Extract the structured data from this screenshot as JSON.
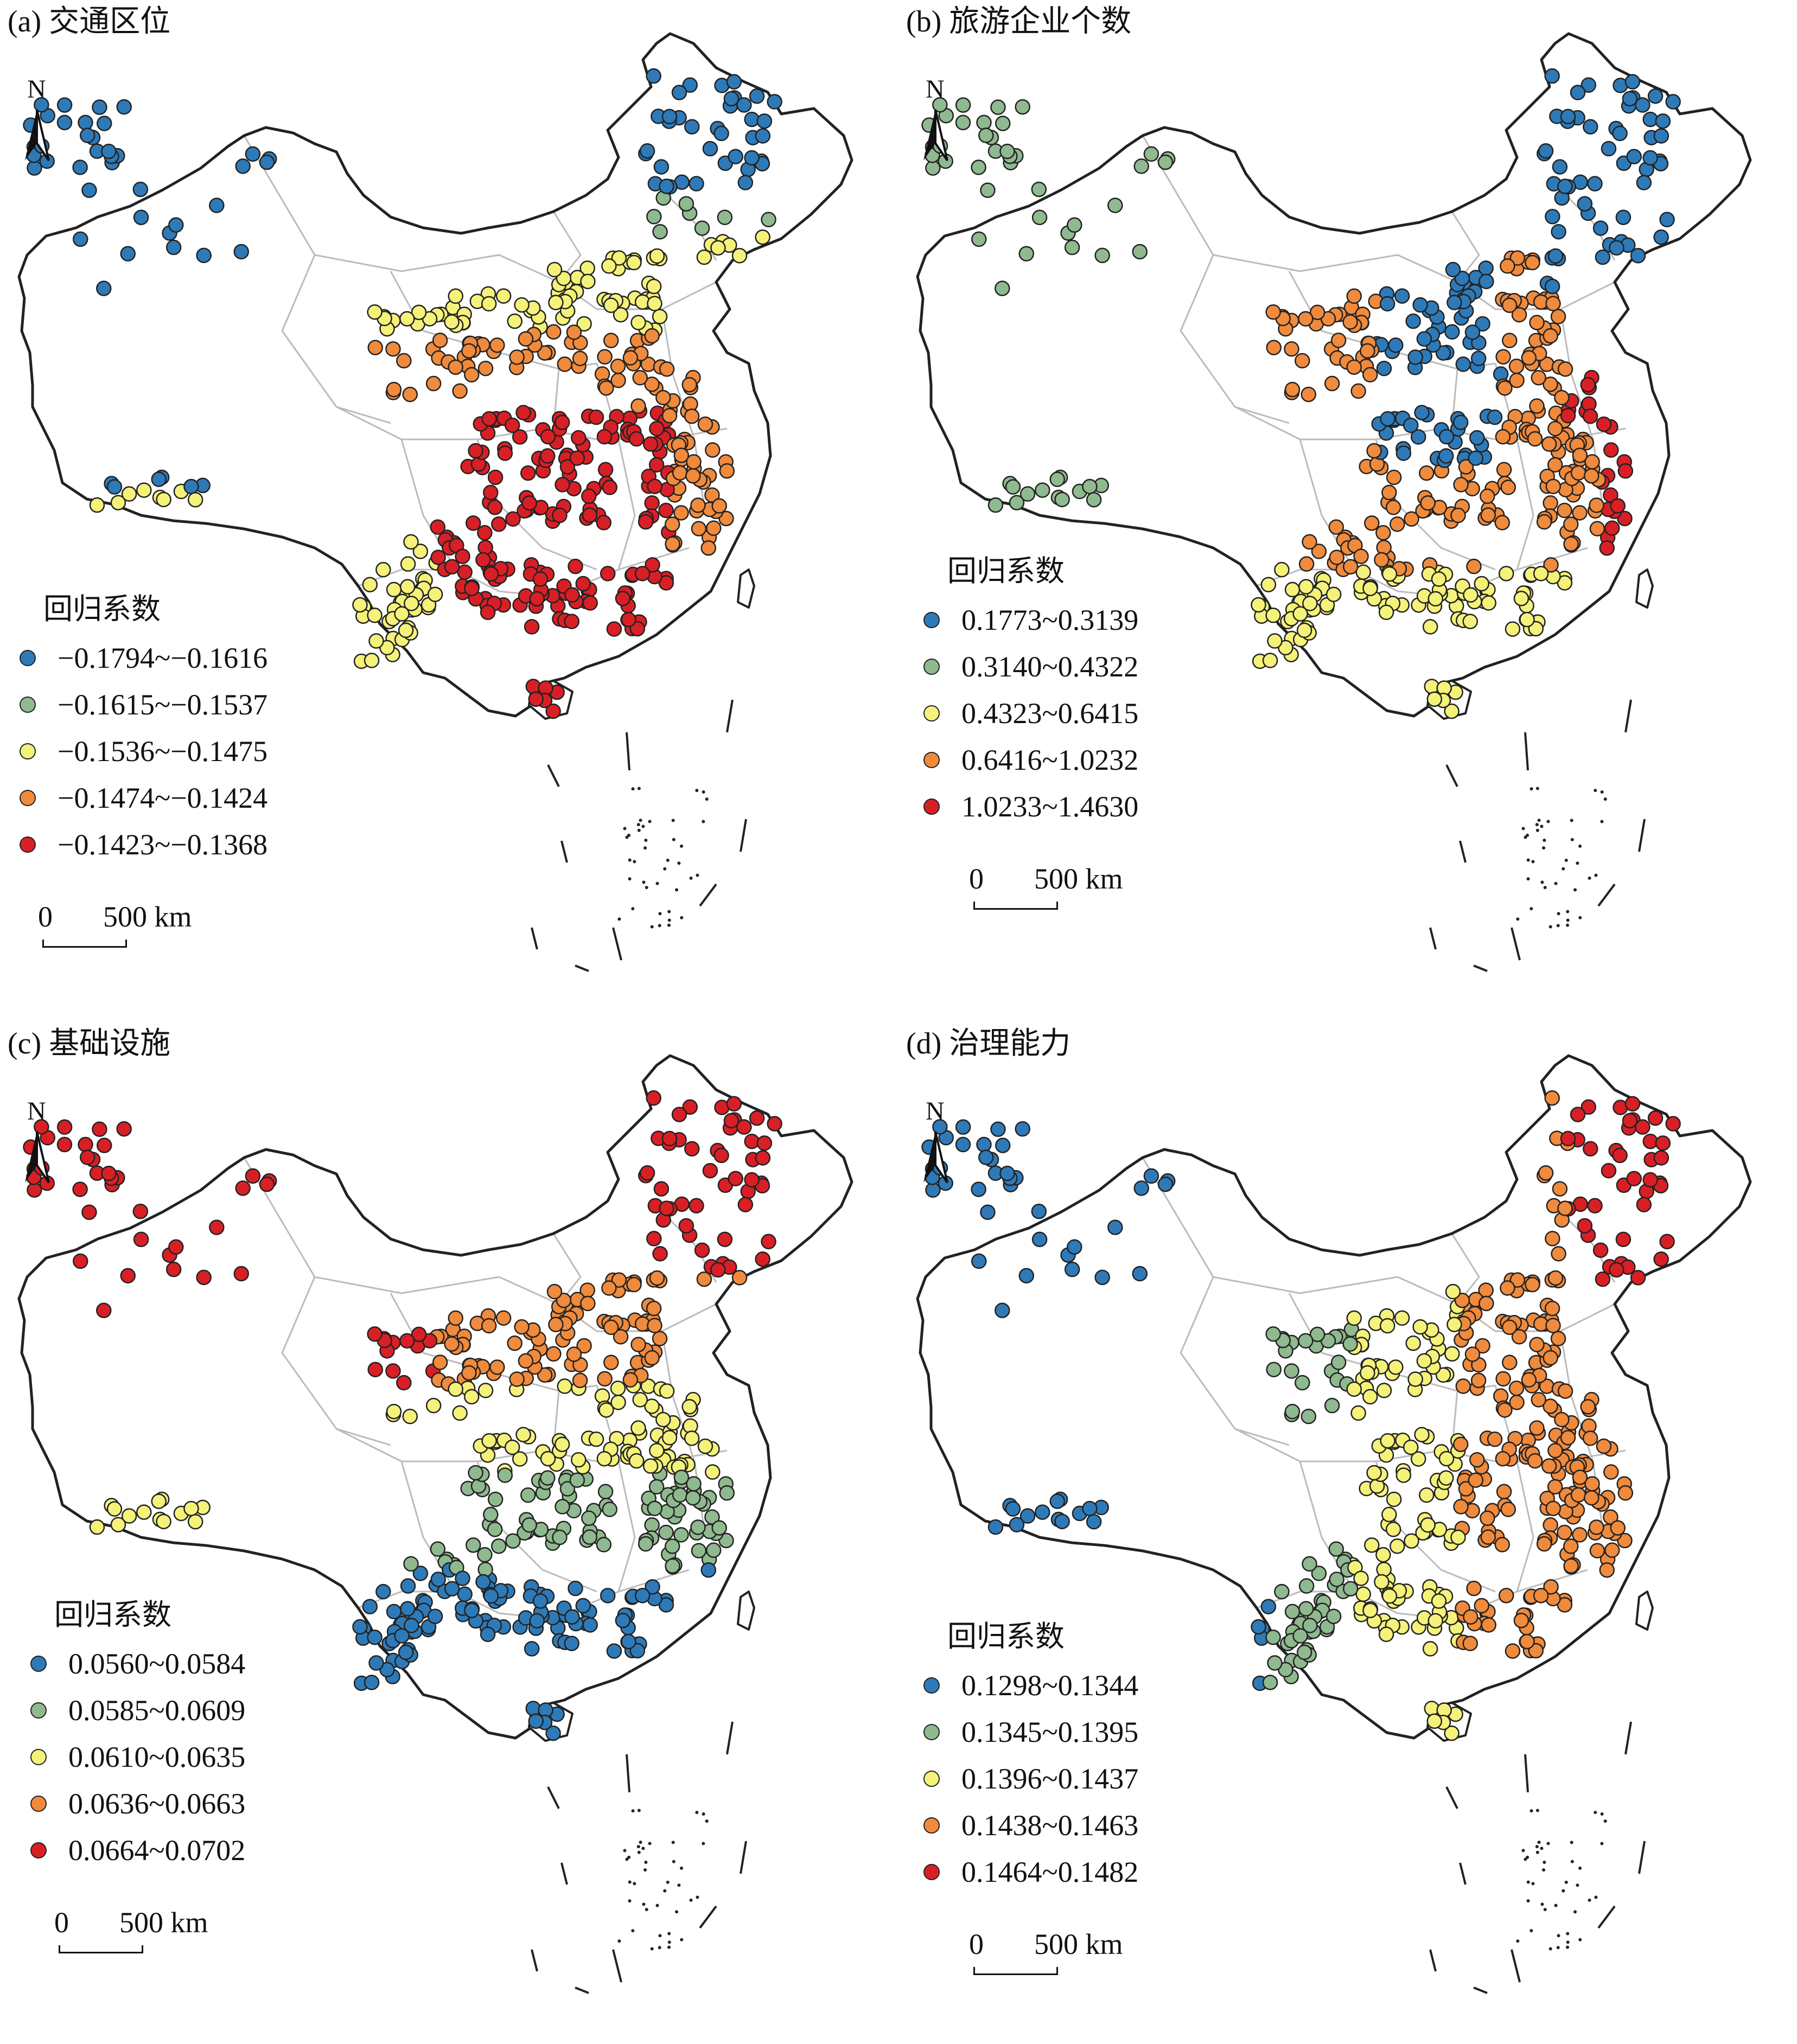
{
  "unit_label": "500 km",
  "scale_zero": "0",
  "north_label": "N",
  "legend_title": "回归系数",
  "colors": [
    "#2e7ab8",
    "#8fb98f",
    "#f5f27a",
    "#f08a3c",
    "#d91f26"
  ],
  "panels": [
    {
      "title": "(a) 交通区位",
      "classes": [
        "−0.1794~−0.1616",
        "−0.1615~−0.1537",
        "−0.1536~−0.1475",
        "−0.1474~−0.1424",
        "−0.1423~−0.1368"
      ],
      "pattern": "a"
    },
    {
      "title": "(b) 旅游企业个数",
      "classes": [
        "0.1773~0.3139",
        "0.3140~0.4322",
        "0.4323~0.6415",
        "0.6416~1.0232",
        "1.0233~1.4630"
      ],
      "pattern": "b"
    },
    {
      "title": "(c) 基础设施",
      "classes": [
        "0.0560~0.0584",
        "0.0585~0.0609",
        "0.0610~0.0635",
        "0.0636~0.0663",
        "0.0664~0.0702"
      ],
      "pattern": "c"
    },
    {
      "title": "(d) 治理能力",
      "classes": [
        "0.1298~0.1344",
        "0.1345~0.1395",
        "0.1396~0.1437",
        "0.1438~0.1463",
        "0.1464~0.1482"
      ],
      "pattern": "d"
    }
  ]
}
